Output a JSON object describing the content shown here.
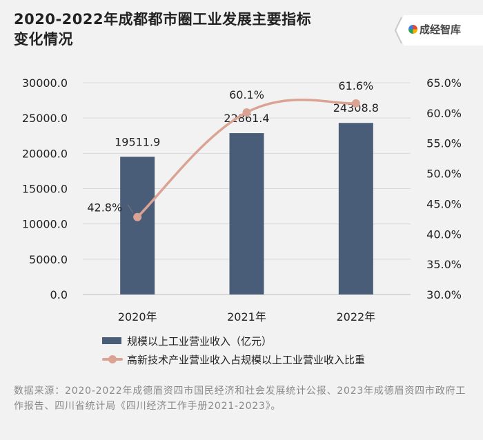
{
  "header": {
    "title_line1": "2020-2022年成都都市圈工业发展主要指标",
    "title_line2": "变化情况",
    "logo_text": "成经智库"
  },
  "chart_data": {
    "type": "bar+line",
    "categories": [
      "2020年",
      "2021年",
      "2022年"
    ],
    "series": [
      {
        "name": "规模以上工业营业收入（亿元）",
        "type": "bar",
        "axis": "left",
        "values": [
          19511.9,
          22861.4,
          24308.8
        ],
        "labels": [
          "19511.9",
          "22861.4",
          "24308.8"
        ],
        "color": "#4a5d78"
      },
      {
        "name": "高新技术产业营业收入占规模以上工业营业收入比重",
        "type": "line",
        "axis": "right",
        "values": [
          42.8,
          60.1,
          61.6
        ],
        "labels": [
          "42.8%",
          "60.1%",
          "61.6%"
        ],
        "color": "#daa394"
      }
    ],
    "y_left": {
      "ylim": [
        0,
        30000
      ],
      "ticks": [
        0,
        5000,
        10000,
        15000,
        20000,
        25000,
        30000
      ],
      "tick_labels": [
        "0.0",
        "5000.0",
        "10000.0",
        "15000.0",
        "20000.0",
        "25000.0",
        "30000.0"
      ]
    },
    "y_right": {
      "ylim": [
        30,
        65
      ],
      "ticks": [
        30,
        35,
        40,
        45,
        50,
        55,
        60,
        65
      ],
      "tick_labels": [
        "30.0%",
        "35.0%",
        "40.0%",
        "45.0%",
        "50.0%",
        "55.0%",
        "60.0%",
        "65.0%"
      ]
    },
    "grid": true,
    "legend": "bottom"
  },
  "source_text": "数据来源：2020-2022年成德眉资四市国民经济和社会发展统计公报、2023年成德眉资四市政府工作报告、四川省统计局《四川经济工作手册2021-2023》。"
}
